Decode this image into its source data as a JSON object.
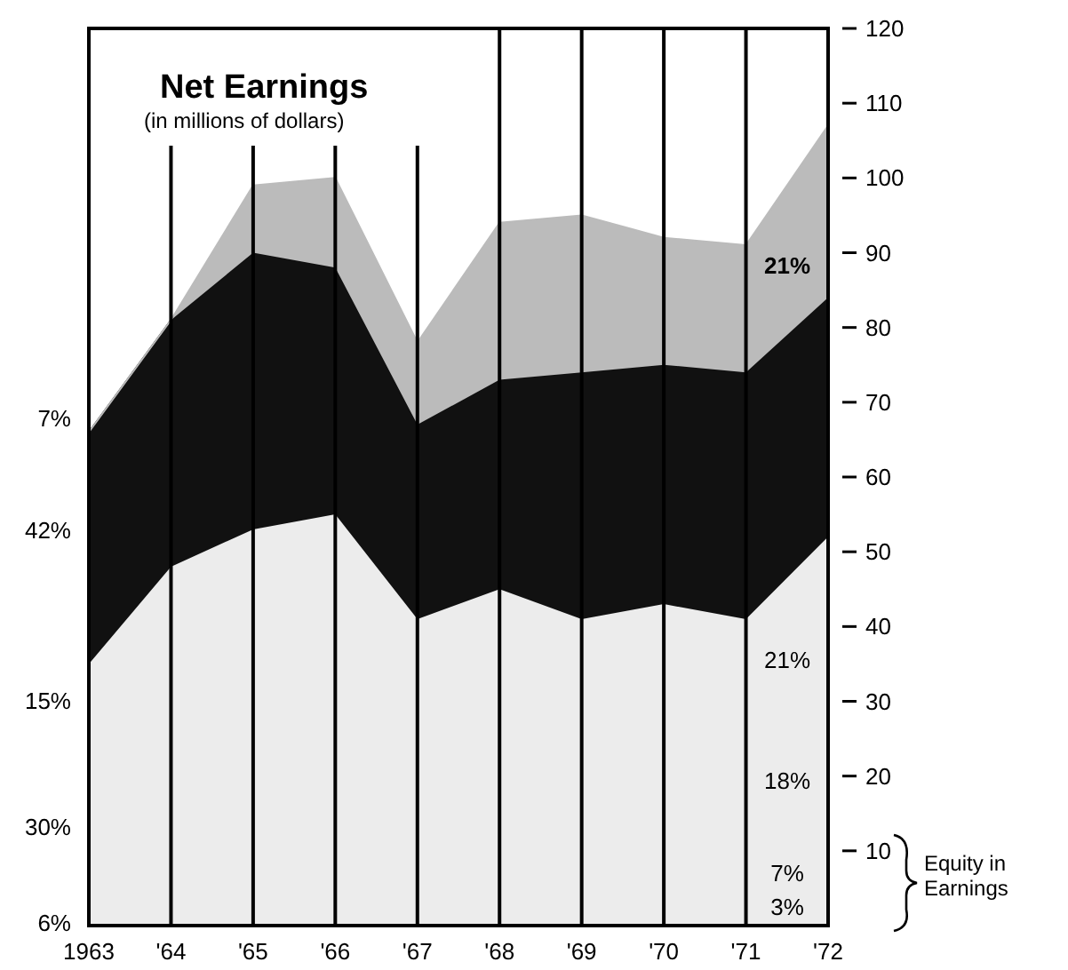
{
  "chart_data": {
    "type": "area",
    "title": "Net Earnings",
    "subtitle": "(in millions of dollars)",
    "categories": [
      "1963",
      "'64",
      "'65",
      "'66",
      "'67",
      "'68",
      "'69",
      "'70",
      "'71",
      "'72"
    ],
    "stacked": true,
    "series": [
      {
        "color": "#ececec",
        "values": [
          35,
          48,
          53,
          55,
          41,
          45,
          41,
          43,
          41,
          52
        ]
      },
      {
        "color": "#111111",
        "values": [
          31,
          33,
          37,
          33,
          26,
          28,
          33,
          32,
          33,
          32
        ]
      },
      {
        "color": "#bbbbbb",
        "values": [
          0,
          0,
          9,
          12,
          11,
          21,
          21,
          17,
          17,
          23
        ]
      }
    ],
    "ylim": [
      0,
      120
    ],
    "yticks": [
      10,
      20,
      30,
      40,
      50,
      60,
      70,
      80,
      90,
      100,
      110,
      120
    ],
    "grid": "x",
    "annotations": [
      "7%",
      "42%",
      "15%",
      "30%",
      "6%",
      "21%",
      "21%",
      "18%",
      "7%",
      "3%",
      "Equity in Earnings"
    ]
  }
}
